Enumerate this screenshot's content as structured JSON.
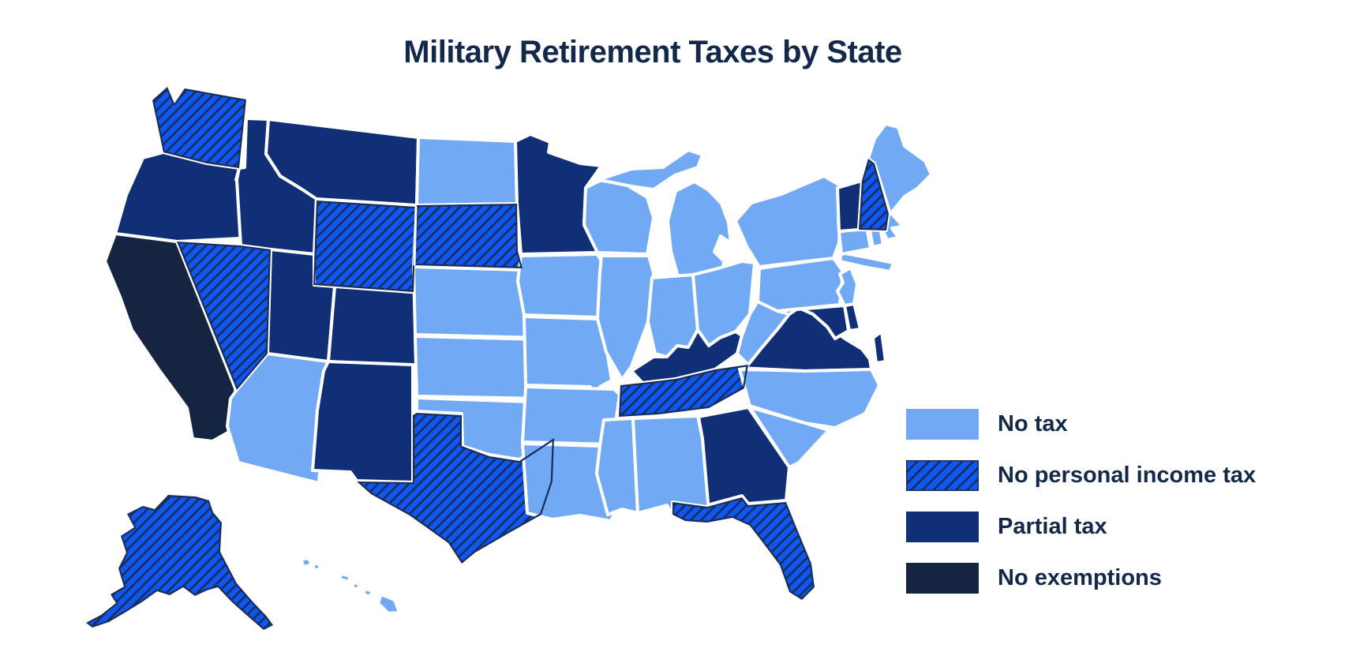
{
  "title": "Military Retirement Taxes by State",
  "colors": {
    "background": "#FFFFFF",
    "no_tax": "#71A9F4",
    "no_personal_income_tax": "#0F57F0",
    "hatch_line": "#172D5C",
    "partial_tax": "#112F77",
    "no_exemptions": "#152440",
    "state_border": "#FFFFFF",
    "text": "#14284A"
  },
  "legend": {
    "items": [
      {
        "id": "no_tax",
        "label": "No tax",
        "style": "solid"
      },
      {
        "id": "no_personal_income_tax",
        "label": "No personal income tax",
        "style": "hatched"
      },
      {
        "id": "partial_tax",
        "label": "Partial tax",
        "style": "solid"
      },
      {
        "id": "no_exemptions",
        "label": "No exemptions",
        "style": "solid"
      }
    ]
  },
  "map": {
    "states": [
      {
        "abbr": "WA",
        "name": "Washington",
        "category": "no_personal_income_tax"
      },
      {
        "abbr": "OR",
        "name": "Oregon",
        "category": "partial_tax"
      },
      {
        "abbr": "CA",
        "name": "California",
        "category": "no_exemptions"
      },
      {
        "abbr": "NV",
        "name": "Nevada",
        "category": "no_personal_income_tax"
      },
      {
        "abbr": "ID",
        "name": "Idaho",
        "category": "partial_tax"
      },
      {
        "abbr": "MT",
        "name": "Montana",
        "category": "partial_tax"
      },
      {
        "abbr": "WY",
        "name": "Wyoming",
        "category": "no_personal_income_tax"
      },
      {
        "abbr": "UT",
        "name": "Utah",
        "category": "partial_tax"
      },
      {
        "abbr": "CO",
        "name": "Colorado",
        "category": "partial_tax"
      },
      {
        "abbr": "AZ",
        "name": "Arizona",
        "category": "no_tax"
      },
      {
        "abbr": "NM",
        "name": "New Mexico",
        "category": "partial_tax"
      },
      {
        "abbr": "ND",
        "name": "North Dakota",
        "category": "no_tax"
      },
      {
        "abbr": "SD",
        "name": "South Dakota",
        "category": "no_personal_income_tax"
      },
      {
        "abbr": "NE",
        "name": "Nebraska",
        "category": "no_tax"
      },
      {
        "abbr": "KS",
        "name": "Kansas",
        "category": "no_tax"
      },
      {
        "abbr": "OK",
        "name": "Oklahoma",
        "category": "no_tax"
      },
      {
        "abbr": "TX",
        "name": "Texas",
        "category": "no_personal_income_tax"
      },
      {
        "abbr": "MN",
        "name": "Minnesota",
        "category": "partial_tax"
      },
      {
        "abbr": "IA",
        "name": "Iowa",
        "category": "no_tax"
      },
      {
        "abbr": "MO",
        "name": "Missouri",
        "category": "no_tax"
      },
      {
        "abbr": "AR",
        "name": "Arkansas",
        "category": "no_tax"
      },
      {
        "abbr": "LA",
        "name": "Louisiana",
        "category": "no_tax"
      },
      {
        "abbr": "WI",
        "name": "Wisconsin",
        "category": "no_tax"
      },
      {
        "abbr": "IL",
        "name": "Illinois",
        "category": "no_tax"
      },
      {
        "abbr": "MI",
        "name": "Michigan",
        "category": "no_tax"
      },
      {
        "abbr": "IN",
        "name": "Indiana",
        "category": "no_tax"
      },
      {
        "abbr": "OH",
        "name": "Ohio",
        "category": "no_tax"
      },
      {
        "abbr": "KY",
        "name": "Kentucky",
        "category": "partial_tax"
      },
      {
        "abbr": "TN",
        "name": "Tennessee",
        "category": "no_personal_income_tax"
      },
      {
        "abbr": "MS",
        "name": "Mississippi",
        "category": "no_tax"
      },
      {
        "abbr": "AL",
        "name": "Alabama",
        "category": "no_tax"
      },
      {
        "abbr": "GA",
        "name": "Georgia",
        "category": "partial_tax"
      },
      {
        "abbr": "FL",
        "name": "Florida",
        "category": "no_personal_income_tax"
      },
      {
        "abbr": "SC",
        "name": "South Carolina",
        "category": "no_tax"
      },
      {
        "abbr": "NC",
        "name": "North Carolina",
        "category": "no_tax"
      },
      {
        "abbr": "VA",
        "name": "Virginia",
        "category": "partial_tax"
      },
      {
        "abbr": "WV",
        "name": "West Virginia",
        "category": "no_tax"
      },
      {
        "abbr": "MD",
        "name": "Maryland",
        "category": "partial_tax"
      },
      {
        "abbr": "DE",
        "name": "Delaware",
        "category": "partial_tax"
      },
      {
        "abbr": "PA",
        "name": "Pennsylvania",
        "category": "no_tax"
      },
      {
        "abbr": "NJ",
        "name": "New Jersey",
        "category": "no_tax"
      },
      {
        "abbr": "NY",
        "name": "New York",
        "category": "no_tax"
      },
      {
        "abbr": "CT",
        "name": "Connecticut",
        "category": "no_tax"
      },
      {
        "abbr": "RI",
        "name": "Rhode Island",
        "category": "no_tax"
      },
      {
        "abbr": "MA",
        "name": "Massachusetts",
        "category": "no_tax"
      },
      {
        "abbr": "VT",
        "name": "Vermont",
        "category": "partial_tax"
      },
      {
        "abbr": "NH",
        "name": "New Hampshire",
        "category": "no_personal_income_tax"
      },
      {
        "abbr": "ME",
        "name": "Maine",
        "category": "no_tax"
      },
      {
        "abbr": "AK",
        "name": "Alaska",
        "category": "no_personal_income_tax"
      },
      {
        "abbr": "HI",
        "name": "Hawaii",
        "category": "no_tax"
      }
    ]
  }
}
